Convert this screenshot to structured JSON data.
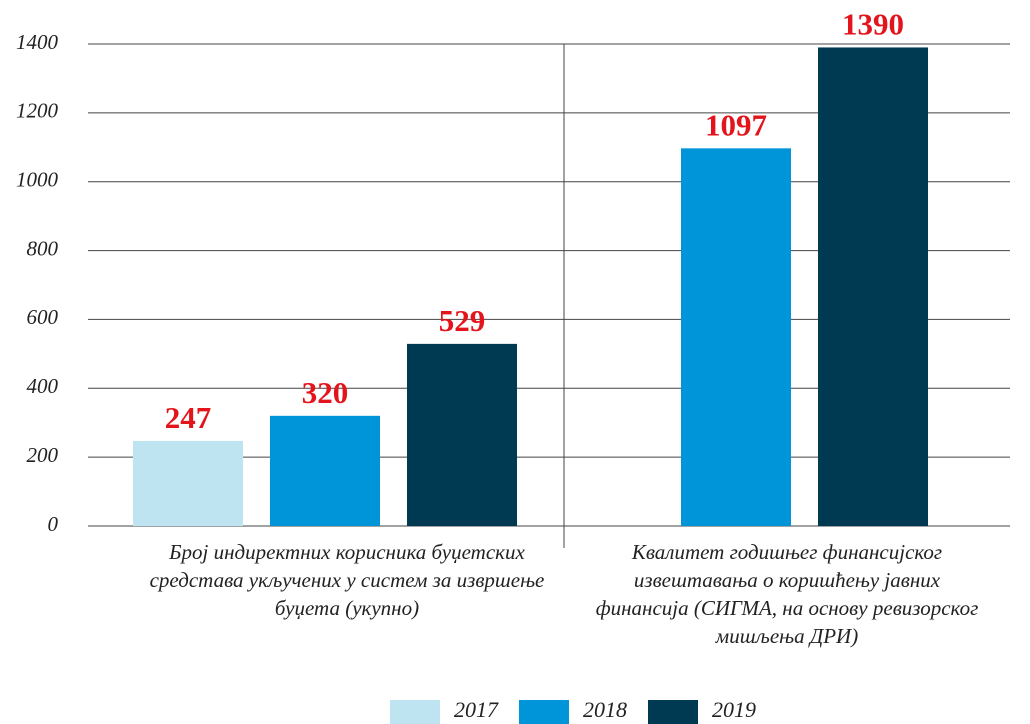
{
  "chart_data": {
    "type": "bar",
    "categories": [
      "Број индиректних корисника буџетских средстава укључених у систем за извршење буџета (укупно)",
      "Квалитет годишњег финансијског извештавања о коришћењу јавних финансија (СИГМА, на основу ревизорског мишљења ДРИ)"
    ],
    "series": [
      {
        "name": "2017",
        "color": "#bde4f0",
        "values": [
          247,
          null
        ]
      },
      {
        "name": "2018",
        "color": "#0095d9",
        "values": [
          320,
          1097
        ]
      },
      {
        "name": "2019",
        "color": "#003a52",
        "values": [
          529,
          1390
        ]
      }
    ],
    "ylim": [
      0,
      1400
    ],
    "yticks": [
      0,
      200,
      400,
      600,
      800,
      1000,
      1200,
      1400
    ],
    "grid": true,
    "legend": "bottom"
  }
}
